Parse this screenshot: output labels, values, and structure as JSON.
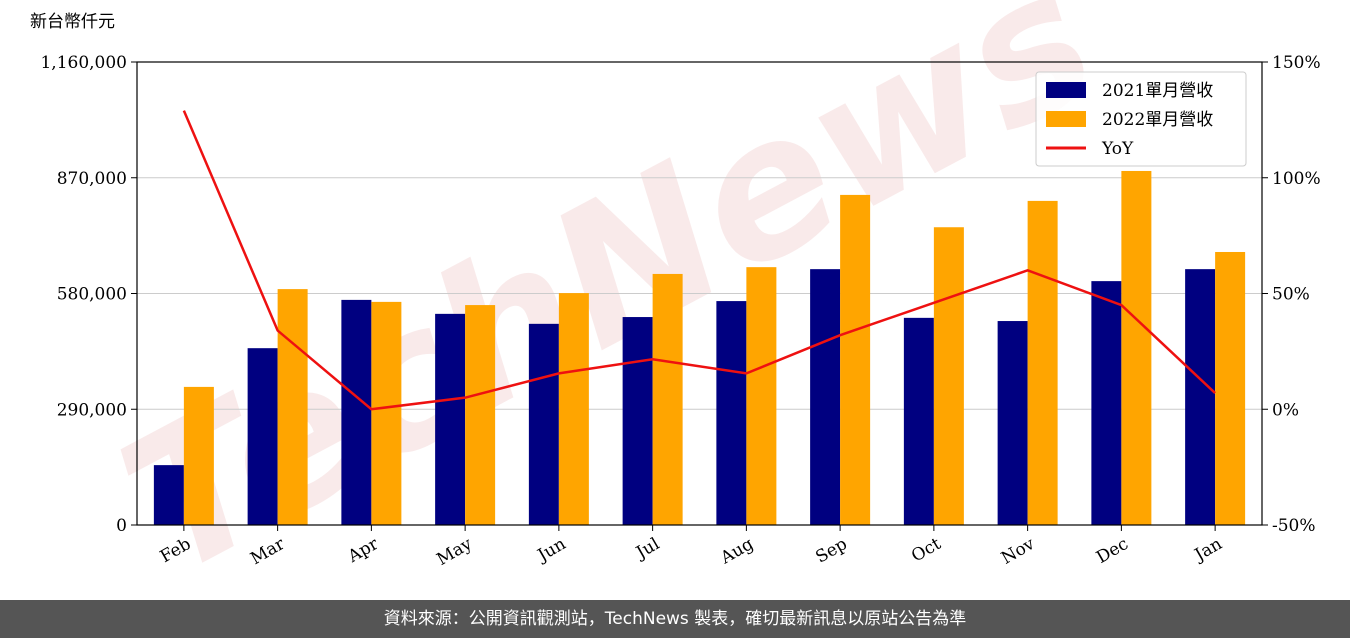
{
  "chart_data": {
    "type": "bar-line",
    "y_axis_label": "新台幣仟元",
    "watermark": "TechNews",
    "categories": [
      "Feb",
      "Mar",
      "Apr",
      "May",
      "Jun",
      "Jul",
      "Aug",
      "Sep",
      "Oct",
      "Nov",
      "Dec",
      "Jan"
    ],
    "series": [
      {
        "name": "2021單月營收",
        "color": "#000080",
        "type": "bar",
        "values": [
          150000,
          443000,
          564000,
          529000,
          504000,
          521000,
          561000,
          641000,
          519000,
          511000,
          611000,
          641000
        ]
      },
      {
        "name": "2022單月營收",
        "color": "#ffa500",
        "type": "bar",
        "values": [
          346000,
          591000,
          559000,
          551000,
          581000,
          629000,
          646000,
          827000,
          746000,
          812000,
          887000,
          684000
        ]
      },
      {
        "name": "YoY",
        "color": "#ee1111",
        "type": "line",
        "axis": "y2",
        "values": [
          129,
          34,
          0,
          5,
          15.5,
          21.6,
          15.5,
          32,
          46,
          60,
          45,
          7
        ]
      }
    ],
    "ylim": [
      0,
      1160000
    ],
    "yticks": [
      0,
      {
        "value": 290000,
        "label": "290,000"
      },
      {
        "value": 580000,
        "label": "580,000"
      },
      {
        "value": 870000,
        "label": "870,000"
      },
      {
        "value": 1160000,
        "label": "1,160,000"
      }
    ],
    "y2lim": [
      -50,
      150
    ],
    "y2ticks": [
      {
        "value": -50,
        "label": "-50%"
      },
      {
        "value": 0,
        "label": "0%"
      },
      {
        "value": 50,
        "label": "50%"
      },
      {
        "value": 100,
        "label": "100%"
      },
      {
        "value": 150,
        "label": "150%"
      }
    ],
    "grid": true,
    "legend": "upper right"
  },
  "footer": "資料來源：公開資訊觀測站，TechNews 製表，確切最新訊息以原站公告為準"
}
